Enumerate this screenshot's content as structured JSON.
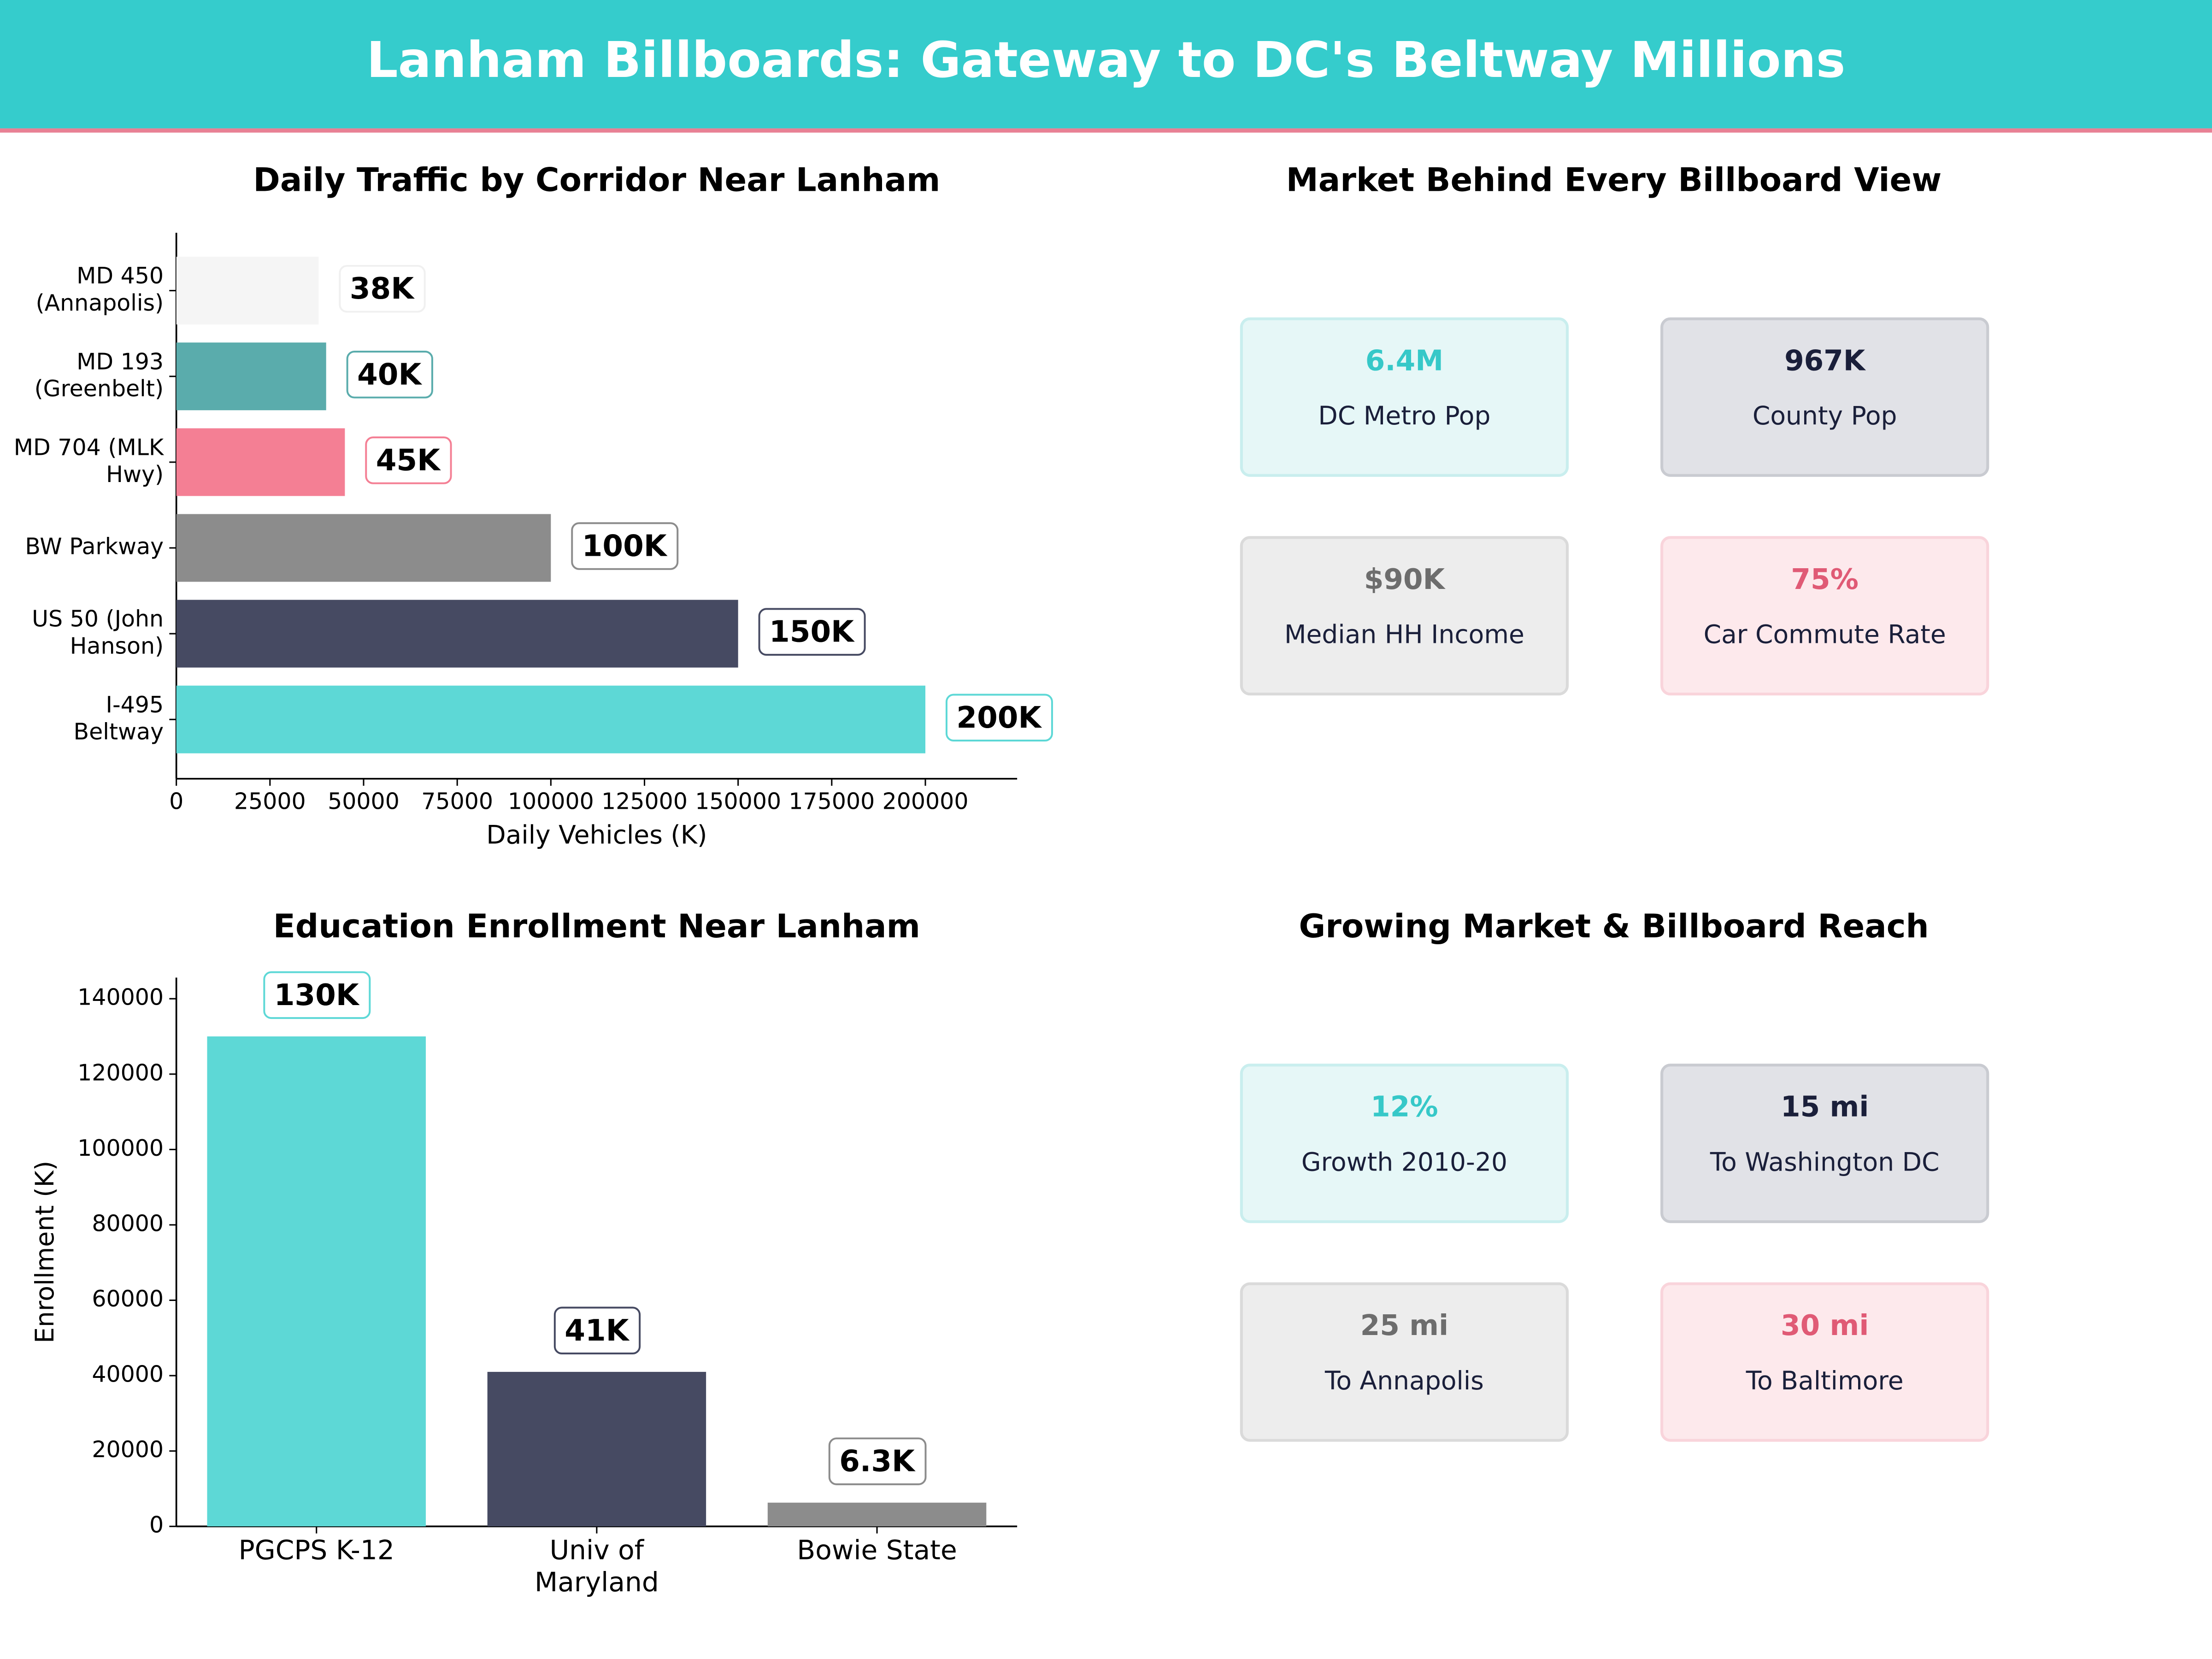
{
  "title": "Lanham Billboards: Gateway to DC's Beltway Millions",
  "chart_data": [
    {
      "type": "hbar",
      "title": "Daily Traffic by Corridor Near Lanham",
      "xlabel": "Daily Vehicles (K)",
      "categories": [
        "MD 450\n(Annapolis)",
        "MD 193\n(Greenbelt)",
        "MD 704 (MLK\nHwy)",
        "BW Parkway",
        "US 50 (John\nHanson)",
        "I-495\nBeltway"
      ],
      "values": [
        38000,
        40000,
        45000,
        100000,
        150000,
        200000
      ],
      "value_labels": [
        "38K",
        "40K",
        "45K",
        "100K",
        "150K",
        "200K"
      ],
      "colors": [
        "#f5f5f5",
        "#5aacac",
        "#f47f94",
        "#8c8c8c",
        "#464a62",
        "#5dd8d6"
      ],
      "xlim": [
        0,
        224500
      ],
      "xticks": [
        0,
        25000,
        50000,
        75000,
        100000,
        125000,
        150000,
        175000,
        200000
      ]
    },
    {
      "type": "bar",
      "title": "Education Enrollment Near Lanham",
      "ylabel": "Enrollment (K)",
      "categories": [
        "PGCPS K-12",
        "Univ of\nMaryland",
        "Bowie State"
      ],
      "values": [
        130000,
        41000,
        6300
      ],
      "value_labels": [
        "130K",
        "41K",
        "6.3K"
      ],
      "colors": [
        "#5dd8d6",
        "#464a62",
        "#8c8c8c"
      ],
      "ylim": [
        0,
        145600
      ],
      "yticks": [
        0,
        20000,
        40000,
        60000,
        80000,
        100000,
        120000,
        140000
      ]
    }
  ],
  "kpi_panels": [
    {
      "title": "Market Behind Every Billboard View",
      "cards": [
        {
          "value": "6.4M",
          "label": "DC Metro Pop",
          "color": "#36c8c8"
        },
        {
          "value": "967K",
          "label": "County Pop",
          "color": "#1a1f3a"
        },
        {
          "value": "$90K",
          "label": "Median HH Income",
          "color": "#6d6d6d"
        },
        {
          "value": "75%",
          "label": "Car Commute Rate",
          "color": "#e05a75"
        }
      ]
    },
    {
      "title": "Growing Market & Billboard Reach",
      "cards": [
        {
          "value": "12%",
          "label": "Growth 2010-20",
          "color": "#36c8c8"
        },
        {
          "value": "15 mi",
          "label": "To Washington DC",
          "color": "#1a1f3a"
        },
        {
          "value": "25 mi",
          "label": "To Annapolis",
          "color": "#6d6d6d"
        },
        {
          "value": "30 mi",
          "label": "To Baltimore",
          "color": "#e05a75"
        }
      ]
    }
  ]
}
